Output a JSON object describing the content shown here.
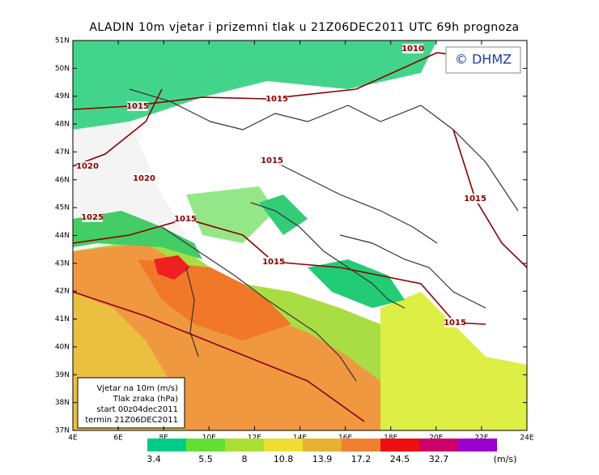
{
  "title": "ALADIN 10m vjetar i prizemni tlak u 21Z06DEC2011 UTC 69h prognoza",
  "logo": "© DHMZ",
  "lat_labels": [
    "51N",
    "50N",
    "49N",
    "48N",
    "47N",
    "46N",
    "45N",
    "44N",
    "43N",
    "42N",
    "41N",
    "40N",
    "39N",
    "38N",
    "37N"
  ],
  "lon_labels": [
    "4E",
    "6E",
    "8E",
    "10E",
    "12E",
    "14E",
    "16E",
    "18E",
    "20E",
    "22E",
    "24E"
  ],
  "isobar_labels": [
    {
      "text": "1010",
      "pos": [
        510,
        60
      ]
    },
    {
      "text": "1015",
      "pos": [
        170,
        131
      ]
    },
    {
      "text": "1015",
      "pos": [
        342,
        122
      ]
    },
    {
      "text": "1020",
      "pos": [
        108,
        205
      ]
    },
    {
      "text": "1020",
      "pos": [
        178,
        220
      ]
    },
    {
      "text": "1015",
      "pos": [
        336,
        198
      ]
    },
    {
      "text": "1025",
      "pos": [
        114,
        268
      ]
    },
    {
      "text": "1015",
      "pos": [
        229,
        270
      ]
    },
    {
      "text": "1015",
      "pos": [
        338,
        323
      ]
    },
    {
      "text": "1015",
      "pos": [
        587,
        245
      ]
    },
    {
      "text": "1015",
      "pos": [
        562,
        398
      ]
    }
  ],
  "info_box": [
    "Vjetar na 10m (m/s)",
    "Tlak zraka (hPa)",
    "start 00z04dec2011",
    "termin 21Z06DEC2011"
  ],
  "legend": {
    "colors": [
      "#00cc88",
      "#66dd33",
      "#aae033",
      "#eedd33",
      "#e8b030",
      "#f08030",
      "#ee1010",
      "#cc0066",
      "#9900cc"
    ],
    "thresholds": [
      "3.4",
      "5.5",
      "8",
      "10.8",
      "13.9",
      "17.2",
      "24.5",
      "32.7"
    ],
    "unit": "(m/s)"
  }
}
